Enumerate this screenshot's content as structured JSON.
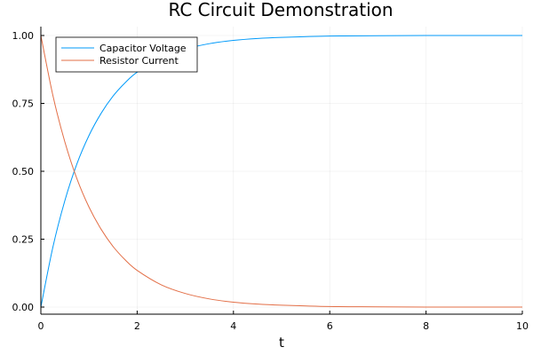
{
  "chart_data": {
    "type": "line",
    "title": "RC Circuit Demonstration",
    "xlabel": "t",
    "ylabel": "",
    "xlim": [
      0,
      10
    ],
    "ylim": [
      0,
      1
    ],
    "xticks": [
      0,
      2,
      4,
      6,
      8,
      10
    ],
    "xtick_labels": [
      "0",
      "2",
      "4",
      "6",
      "8",
      "10"
    ],
    "yticks": [
      0,
      0.25,
      0.5,
      0.75,
      1.0
    ],
    "ytick_labels": [
      "0.00",
      "0.25",
      "0.50",
      "0.75",
      "1.00"
    ],
    "grid": true,
    "legend_position": "top-left",
    "x": [
      0,
      0.25,
      0.5,
      0.75,
      1,
      1.25,
      1.5,
      1.75,
      2,
      2.5,
      3,
      3.5,
      4,
      4.5,
      5,
      6,
      7,
      8,
      9,
      10
    ],
    "series": [
      {
        "name": "Capacitor Voltage",
        "color": "#009AFA",
        "values": [
          0.0,
          0.221,
          0.393,
          0.528,
          0.632,
          0.713,
          0.777,
          0.826,
          0.865,
          0.918,
          0.95,
          0.97,
          0.982,
          0.989,
          0.993,
          0.998,
          0.999,
          1.0,
          1.0,
          1.0
        ]
      },
      {
        "name": "Resistor Current",
        "color": "#E36F47",
        "values": [
          1.0,
          0.779,
          0.607,
          0.472,
          0.368,
          0.287,
          0.223,
          0.174,
          0.135,
          0.082,
          0.05,
          0.03,
          0.018,
          0.011,
          0.007,
          0.002,
          0.001,
          0.0,
          0.0,
          0.0
        ]
      }
    ]
  }
}
